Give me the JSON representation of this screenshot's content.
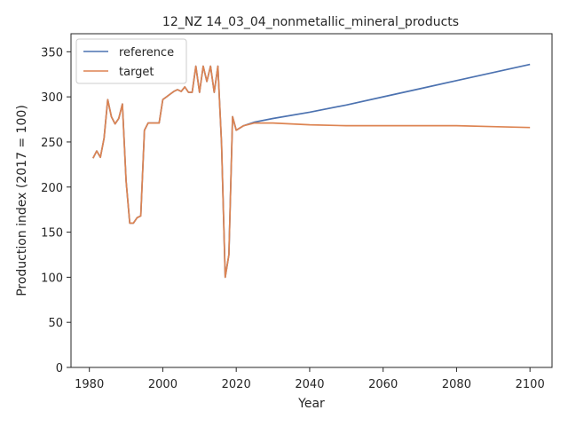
{
  "chart_data": {
    "type": "line",
    "title": "12_NZ 14_03_04_nonmetallic_mineral_products",
    "xlabel": "Year",
    "ylabel": "Production index (2017 = 100)",
    "xlim": [
      1975,
      2106
    ],
    "ylim": [
      0,
      370
    ],
    "xticks": [
      1980,
      2000,
      2020,
      2040,
      2060,
      2080,
      2100
    ],
    "yticks": [
      0,
      50,
      100,
      150,
      200,
      250,
      300,
      350
    ],
    "grid": false,
    "legend_position": "upper-left",
    "series": [
      {
        "name": "reference",
        "color": "#4c72b0",
        "x": [
          1981,
          1982,
          1983,
          1984,
          1985,
          1986,
          1987,
          1988,
          1989,
          1990,
          1991,
          1992,
          1993,
          1994,
          1995,
          1996,
          1997,
          1998,
          1999,
          2000,
          2001,
          2002,
          2003,
          2004,
          2005,
          2006,
          2007,
          2008,
          2009,
          2010,
          2011,
          2012,
          2013,
          2014,
          2015,
          2016,
          2017,
          2018,
          2019,
          2020,
          2022,
          2025,
          2030,
          2040,
          2050,
          2060,
          2070,
          2080,
          2090,
          2100
        ],
        "values": [
          232,
          240,
          233,
          254,
          297,
          278,
          270,
          276,
          292,
          207,
          160,
          160,
          166,
          168,
          263,
          271,
          271,
          271,
          271,
          297,
          300,
          303,
          306,
          308,
          306,
          311,
          305,
          305,
          334,
          305,
          334,
          317,
          334,
          305,
          334,
          248,
          100,
          125,
          278,
          263,
          268,
          272,
          276,
          283,
          291,
          300,
          309,
          318,
          327,
          336
        ]
      },
      {
        "name": "target",
        "color": "#dd8452",
        "x": [
          1981,
          1982,
          1983,
          1984,
          1985,
          1986,
          1987,
          1988,
          1989,
          1990,
          1991,
          1992,
          1993,
          1994,
          1995,
          1996,
          1997,
          1998,
          1999,
          2000,
          2001,
          2002,
          2003,
          2004,
          2005,
          2006,
          2007,
          2008,
          2009,
          2010,
          2011,
          2012,
          2013,
          2014,
          2015,
          2016,
          2017,
          2018,
          2019,
          2020,
          2022,
          2025,
          2030,
          2040,
          2050,
          2060,
          2070,
          2080,
          2090,
          2100
        ],
        "values": [
          232,
          240,
          233,
          254,
          297,
          278,
          270,
          276,
          292,
          207,
          160,
          160,
          166,
          168,
          263,
          271,
          271,
          271,
          271,
          297,
          300,
          303,
          306,
          308,
          306,
          311,
          305,
          305,
          334,
          305,
          334,
          317,
          334,
          305,
          334,
          248,
          100,
          125,
          278,
          263,
          268,
          271,
          271,
          269,
          268,
          268,
          268,
          268,
          267,
          266
        ]
      }
    ]
  }
}
